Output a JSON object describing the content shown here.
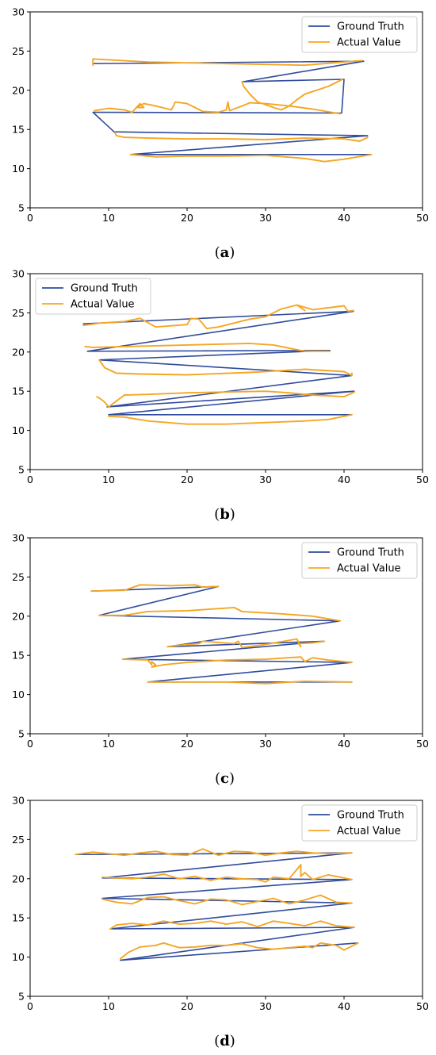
{
  "figure": {
    "legend_labels": [
      "Ground Truth",
      "Actual Value"
    ],
    "colors": {
      "ground_truth": "#2f4b9c",
      "actual_value": "#f5a623"
    }
  },
  "chart_data": [
    {
      "type": "line",
      "caption": "(a)",
      "xlim": [
        0,
        50
      ],
      "ylim": [
        5,
        30
      ],
      "xticks": [
        "0",
        "10",
        "20",
        "30",
        "40",
        "50"
      ],
      "yticks": [
        "5",
        "10",
        "15",
        "20",
        "25",
        "30"
      ],
      "legend_position": "top-right",
      "series": [
        {
          "name": "Ground Truth",
          "color": "#2f4b9c",
          "x": [
            8,
            42.5,
            27.2,
            40,
            39.7,
            8,
            10.7,
            43,
            12.8,
            43.5
          ],
          "y": [
            23.4,
            23.7,
            21.1,
            21.4,
            17.1,
            17.2,
            14.7,
            14.2,
            11.8,
            11.8
          ]
        },
        {
          "name": "Actual Value",
          "color": "#f5a623",
          "x": [
            8,
            8,
            15,
            20,
            30,
            35,
            40,
            42.3,
            null,
            8.2,
            10,
            12,
            13,
            14,
            14.5,
            13.5,
            14.5,
            16,
            18,
            18.5,
            20,
            22,
            24,
            25,
            25.2,
            25.4,
            27,
            28,
            30,
            33,
            36,
            39.5,
            null,
            27,
            27.2,
            28,
            29,
            31,
            32,
            33,
            34,
            35,
            38,
            39.8,
            null,
            10.8,
            11,
            12,
            15,
            20,
            25,
            30,
            35,
            40,
            42,
            43,
            null,
            12.8,
            14,
            16,
            20,
            25,
            30,
            35,
            37.5,
            40,
            43.5
          ],
          "y": [
            23.2,
            24,
            23.6,
            23.5,
            23.3,
            23.2,
            23.6,
            23.8,
            null,
            17.4,
            17.7,
            17.5,
            17.2,
            18.3,
            17.8,
            17.8,
            18.3,
            18,
            17.5,
            18.5,
            18.3,
            17.3,
            17.2,
            17.5,
            18.5,
            17.4,
            18,
            18.4,
            18.3,
            18,
            17.6,
            17,
            null,
            21.1,
            20.5,
            19.5,
            18.5,
            17.8,
            17.5,
            18,
            18.8,
            19.5,
            20.5,
            21.4,
            null,
            14.6,
            14.2,
            14,
            13.9,
            13.8,
            13.8,
            13.7,
            13.9,
            13.8,
            13.5,
            14,
            null,
            11.8,
            11.7,
            11.5,
            11.6,
            11.6,
            11.7,
            11.3,
            10.9,
            11.2,
            11.8
          ]
        }
      ]
    },
    {
      "type": "line",
      "caption": "(b)",
      "xlim": [
        0,
        50
      ],
      "ylim": [
        5,
        30
      ],
      "xticks": [
        "0",
        "10",
        "20",
        "30",
        "40",
        "50"
      ],
      "yticks": [
        "5",
        "10",
        "15",
        "20",
        "25",
        "30"
      ],
      "legend_position": "top-left",
      "series": [
        {
          "name": "Ground Truth",
          "color": "#2f4b9c",
          "x": [
            6.8,
            41.2,
            7.3,
            38.2,
            8.8,
            41,
            9.8,
            41.3,
            10,
            41
          ],
          "y": [
            23.6,
            25.2,
            20.1,
            20.2,
            19,
            17,
            13,
            15,
            12,
            12
          ]
        },
        {
          "name": "Actual Value",
          "color": "#f5a623",
          "x": [
            6.8,
            9,
            12,
            14,
            16,
            20,
            20.5,
            21.5,
            22.5,
            24,
            28,
            30,
            32,
            34,
            35,
            34,
            36,
            40,
            40.5,
            41.2,
            null,
            7,
            8,
            12,
            20,
            28,
            31,
            35,
            38.2,
            null,
            8.8,
            9.5,
            11,
            14,
            20,
            28,
            35,
            40,
            41,
            41,
            null,
            8.5,
            9,
            9.5,
            10,
            12,
            15,
            20,
            30,
            33,
            36,
            40,
            41.3,
            null,
            10,
            12,
            15,
            20,
            25,
            30,
            35,
            38,
            41
          ],
          "y": [
            23.4,
            23.7,
            23.9,
            24.3,
            23.2,
            23.5,
            24.3,
            24.2,
            23.0,
            23.2,
            24.2,
            24.5,
            25.5,
            26.0,
            25.3,
            26.0,
            25.4,
            25.9,
            25.2,
            25.3,
            null,
            20.7,
            20.6,
            20.7,
            20.9,
            21.1,
            20.9,
            20.1,
            20.1,
            null,
            19,
            18,
            17.3,
            17.2,
            17.1,
            17.4,
            17.8,
            17.5,
            17.0,
            17.3,
            null,
            14.3,
            14.0,
            13.6,
            13.0,
            14.5,
            14.6,
            14.8,
            15.0,
            14.8,
            14.5,
            14.3,
            14.9,
            null,
            11.8,
            11.7,
            11.2,
            10.8,
            10.8,
            11.0,
            11.2,
            11.4,
            12.0
          ]
        }
      ]
    },
    {
      "type": "line",
      "caption": "(c)",
      "xlim": [
        0,
        50
      ],
      "ylim": [
        5,
        30
      ],
      "xticks": [
        "0",
        "10",
        "20",
        "30",
        "40",
        "50"
      ],
      "yticks": [
        "5",
        "10",
        "15",
        "20",
        "25",
        "30"
      ],
      "legend_position": "top-right",
      "series": [
        {
          "name": "Ground Truth",
          "color": "#2f4b9c",
          "x": [
            7.8,
            24,
            8.8,
            39.5,
            17.5,
            37.5,
            11.8,
            41,
            15,
            41
          ],
          "y": [
            23.2,
            23.8,
            20.1,
            19.4,
            16.1,
            16.8,
            14.5,
            14.1,
            11.6,
            11.6
          ]
        },
        {
          "name": "Actual Value",
          "color": "#f5a623",
          "x": [
            7.8,
            12,
            14,
            18,
            21,
            22,
            24,
            null,
            8.8,
            12,
            15,
            20,
            26,
            27,
            32,
            36,
            39.5,
            null,
            17.5,
            19,
            21.5,
            22,
            26,
            26.5,
            27,
            30,
            34,
            34.5,
            34.2,
            36,
            37.5,
            null,
            11.8,
            15,
            15.5,
            15.5,
            16,
            15.5,
            17,
            20,
            25,
            30,
            34.5,
            35,
            36,
            38,
            41,
            null,
            15,
            20,
            25,
            30,
            35,
            41
          ],
          "y": [
            23.2,
            23.3,
            24.0,
            23.9,
            24.0,
            23.7,
            23.8,
            null,
            20.1,
            20.1,
            20.6,
            20.7,
            21.1,
            20.6,
            20.3,
            20.0,
            19.4,
            null,
            16.1,
            16.3,
            16.5,
            16.8,
            16.5,
            16.8,
            16.0,
            16.4,
            17.1,
            16.1,
            16.5,
            16.6,
            16.8,
            null,
            14.5,
            14.4,
            13.8,
            14.2,
            13.8,
            13.5,
            13.8,
            14.1,
            14.4,
            14.5,
            14.8,
            14.2,
            14.7,
            14.4,
            14.1,
            null,
            11.6,
            11.6,
            11.6,
            11.4,
            11.7,
            11.6
          ]
        }
      ]
    },
    {
      "type": "line",
      "caption": "(d)",
      "xlim": [
        0,
        50
      ],
      "ylim": [
        5,
        30
      ],
      "xticks": [
        "0",
        "10",
        "20",
        "30",
        "40",
        "50"
      ],
      "yticks": [
        "5",
        "10",
        "15",
        "20",
        "25",
        "30"
      ],
      "legend_position": "top-right",
      "series": [
        {
          "name": "Ground Truth",
          "color": "#2f4b9c",
          "x": [
            5.8,
            41,
            9.2,
            41,
            9.2,
            41,
            10.2,
            41.3,
            11.5,
            41.8
          ],
          "y": [
            23.1,
            23.3,
            20.1,
            19.9,
            17.5,
            16.9,
            13.6,
            13.8,
            9.6,
            11.8
          ]
        },
        {
          "name": "Actual Value",
          "color": "#f5a623",
          "x": [
            5.8,
            8,
            10,
            12,
            14,
            16,
            18,
            20,
            22,
            24,
            26,
            28,
            30,
            32,
            34,
            36,
            38,
            41,
            null,
            9.2,
            11,
            13,
            15,
            17,
            19,
            21,
            23,
            25,
            27,
            29,
            30,
            31,
            33,
            34.5,
            34.5,
            35,
            36,
            38,
            40,
            41,
            null,
            9.2,
            11,
            13,
            15,
            17,
            19,
            21,
            23,
            25,
            27,
            29,
            31,
            33,
            35,
            37,
            39,
            41,
            null,
            10.2,
            11,
            13,
            15,
            17,
            19,
            21,
            23,
            25,
            27,
            29,
            31,
            33,
            35,
            37,
            39,
            41.3,
            null,
            11.5,
            12.5,
            14,
            16,
            17,
            19,
            21,
            23,
            25,
            27,
            29,
            31,
            33,
            35,
            36,
            37,
            39,
            40,
            41.8
          ],
          "y": [
            23.1,
            23.4,
            23.2,
            23.0,
            23.3,
            23.5,
            23.1,
            23.0,
            23.8,
            23.0,
            23.5,
            23.4,
            23.0,
            23.3,
            23.5,
            23.3,
            23.2,
            23.3,
            null,
            20.2,
            20.1,
            20.0,
            20.2,
            20.6,
            20.0,
            20.3,
            19.8,
            20.2,
            20.0,
            19.9,
            19.6,
            20.2,
            20.0,
            21.8,
            20.3,
            20.8,
            19.9,
            20.5,
            20.1,
            19.9,
            null,
            17.4,
            17.0,
            16.8,
            17.6,
            17.7,
            17.2,
            16.8,
            17.4,
            17.3,
            16.7,
            17.1,
            17.5,
            16.8,
            17.3,
            17.9,
            17.0,
            16.9,
            null,
            13.6,
            14.1,
            14.3,
            14.1,
            14.6,
            14.2,
            14.3,
            14.6,
            14.2,
            14.5,
            13.9,
            14.6,
            14.3,
            14.0,
            14.6,
            14.0,
            13.8,
            null,
            9.8,
            10.6,
            11.3,
            11.5,
            11.8,
            11.2,
            11.3,
            11.5,
            11.5,
            11.7,
            11.2,
            11.0,
            11.2,
            11.4,
            11.2,
            11.8,
            11.5,
            10.9,
            11.8
          ]
        }
      ]
    }
  ]
}
